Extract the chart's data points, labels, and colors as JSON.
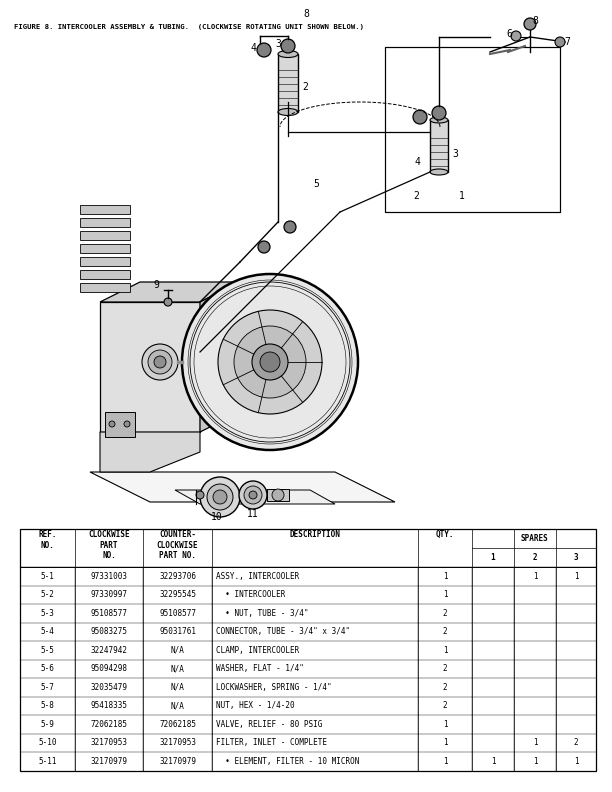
{
  "page_number": "8",
  "figure_title": "FIGURE 8. INTERCOOLER ASSEMBLY & TUBING.  (CLOCKWISE ROTATING UNIT SHOWN BELOW.)",
  "table_rows": [
    {
      "ref": "5-1",
      "cw": "97331003",
      "ccw": "32293706",
      "desc": "ASSY., INTERCOOLER",
      "qty": "1",
      "s1": "",
      "s2": "1",
      "s3": "1"
    },
    {
      "ref": "5-2",
      "cw": "97330997",
      "ccw": "32295545",
      "desc": "  • INTERCOOLER",
      "qty": "1",
      "s1": "",
      "s2": "",
      "s3": ""
    },
    {
      "ref": "5-3",
      "cw": "95108577",
      "ccw": "95108577",
      "desc": "  • NUT, TUBE - 3/4\"",
      "qty": "2",
      "s1": "",
      "s2": "",
      "s3": ""
    },
    {
      "ref": "5-4",
      "cw": "95083275",
      "ccw": "95031761",
      "desc": "CONNECTOR, TUBE - 3/4\" x 3/4\"",
      "qty": "2",
      "s1": "",
      "s2": "",
      "s3": ""
    },
    {
      "ref": "5-5",
      "cw": "32247942",
      "ccw": "N/A",
      "desc": "CLAMP, INTERCOOLER",
      "qty": "1",
      "s1": "",
      "s2": "",
      "s3": ""
    },
    {
      "ref": "5-6",
      "cw": "95094298",
      "ccw": "N/A",
      "desc": "WASHER, FLAT - 1/4\"",
      "qty": "2",
      "s1": "",
      "s2": "",
      "s3": ""
    },
    {
      "ref": "5-7",
      "cw": "32035479",
      "ccw": "N/A",
      "desc": "LOCKWASHER, SPRING - 1/4\"",
      "qty": "2",
      "s1": "",
      "s2": "",
      "s3": ""
    },
    {
      "ref": "5-8",
      "cw": "95418335",
      "ccw": "N/A",
      "desc": "NUT, HEX - 1/4-20",
      "qty": "2",
      "s1": "",
      "s2": "",
      "s3": ""
    },
    {
      "ref": "5-9",
      "cw": "72062185",
      "ccw": "72062185",
      "desc": "VALVE, RELIEF - 80 PSIG",
      "qty": "1",
      "s1": "",
      "s2": "",
      "s3": ""
    },
    {
      "ref": "5-10",
      "cw": "32170953",
      "ccw": "32170953",
      "desc": "FILTER, INLET - COMPLETE",
      "qty": "1",
      "s1": "",
      "s2": "1",
      "s3": "2"
    },
    {
      "ref": "5-11",
      "cw": "32170979",
      "ccw": "32170979",
      "desc": "  • ELEMENT, FILTER - 10 MICRON",
      "qty": "1",
      "s1": "1",
      "s2": "1",
      "s3": "1"
    }
  ],
  "bg_color": "#ffffff",
  "text_color": "#000000"
}
